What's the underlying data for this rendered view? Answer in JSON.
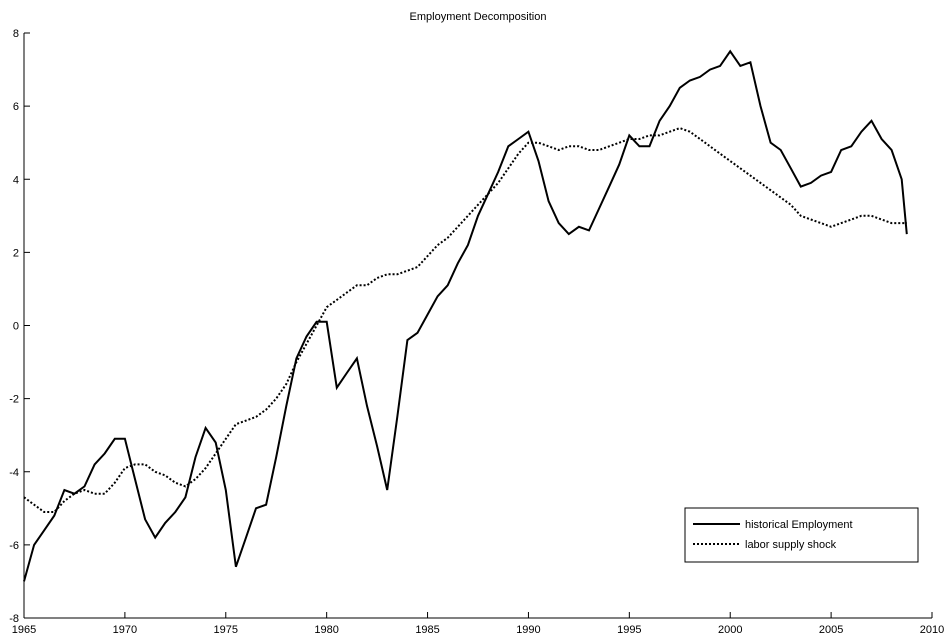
{
  "chart_data": {
    "type": "line",
    "title": "Employment Decomposition",
    "x": [
      1965,
      1965.5,
      1966,
      1966.5,
      1967,
      1967.5,
      1968,
      1968.5,
      1969,
      1969.5,
      1970,
      1970.5,
      1971,
      1971.5,
      1972,
      1972.5,
      1973,
      1973.5,
      1974,
      1974.5,
      1975,
      1975.5,
      1976,
      1976.5,
      1977,
      1977.5,
      1978,
      1978.5,
      1979,
      1979.5,
      1980,
      1980.5,
      1981,
      1981.5,
      1982,
      1982.5,
      1983,
      1983.5,
      1984,
      1984.5,
      1985,
      1985.5,
      1986,
      1986.5,
      1987,
      1987.5,
      1988,
      1988.5,
      1989,
      1989.5,
      1990,
      1990.5,
      1991,
      1991.5,
      1992,
      1992.5,
      1993,
      1993.5,
      1994,
      1994.5,
      1995,
      1995.5,
      1996,
      1996.5,
      1997,
      1997.5,
      1998,
      1998.5,
      1999,
      1999.5,
      2000,
      2000.5,
      2001,
      2001.5,
      2002,
      2002.5,
      2003,
      2003.5,
      2004,
      2004.5,
      2005,
      2005.5,
      2006,
      2006.5,
      2007,
      2007.5,
      2008,
      2008.5,
      2008.75
    ],
    "series": [
      {
        "name": "historical Employment",
        "color": "#000000",
        "line_style": "solid",
        "values": [
          -7.0,
          -6.0,
          -5.6,
          -5.2,
          -4.5,
          -4.6,
          -4.4,
          -3.8,
          -3.5,
          -3.1,
          -3.1,
          -4.2,
          -5.3,
          -5.8,
          -5.4,
          -5.1,
          -4.7,
          -3.6,
          -2.8,
          -3.2,
          -4.5,
          -6.6,
          -5.8,
          -5.0,
          -4.9,
          -3.6,
          -2.2,
          -0.9,
          -0.3,
          0.1,
          0.1,
          -1.7,
          -1.3,
          -0.9,
          -2.2,
          -3.3,
          -4.5,
          -2.5,
          -0.4,
          -0.2,
          0.3,
          0.8,
          1.1,
          1.7,
          2.2,
          3.0,
          3.6,
          4.2,
          4.9,
          5.1,
          5.3,
          4.5,
          3.4,
          2.8,
          2.5,
          2.7,
          2.6,
          3.2,
          3.8,
          4.4,
          5.2,
          4.9,
          4.9,
          5.6,
          6.0,
          6.5,
          6.7,
          6.8,
          7.0,
          7.1,
          7.5,
          7.1,
          7.2,
          6.0,
          5.0,
          4.8,
          4.3,
          3.8,
          3.9,
          4.1,
          4.2,
          4.8,
          4.9,
          5.3,
          5.6,
          5.1,
          4.8,
          4.0,
          2.5
        ]
      },
      {
        "name": "labor supply shock",
        "color": "#000000",
        "line_style": "dotted",
        "values": [
          -4.7,
          -4.9,
          -5.1,
          -5.1,
          -4.8,
          -4.6,
          -4.5,
          -4.6,
          -4.6,
          -4.3,
          -3.9,
          -3.8,
          -3.8,
          -4.0,
          -4.1,
          -4.3,
          -4.4,
          -4.2,
          -3.9,
          -3.5,
          -3.1,
          -2.7,
          -2.6,
          -2.5,
          -2.3,
          -2.0,
          -1.6,
          -1.0,
          -0.5,
          0.0,
          0.5,
          0.7,
          0.9,
          1.1,
          1.1,
          1.3,
          1.4,
          1.4,
          1.5,
          1.6,
          1.9,
          2.2,
          2.4,
          2.7,
          3.0,
          3.3,
          3.6,
          3.9,
          4.3,
          4.7,
          5.0,
          5.0,
          4.9,
          4.8,
          4.9,
          4.9,
          4.8,
          4.8,
          4.9,
          5.0,
          5.1,
          5.1,
          5.2,
          5.2,
          5.3,
          5.4,
          5.3,
          5.1,
          4.9,
          4.7,
          4.5,
          4.3,
          4.1,
          3.9,
          3.7,
          3.5,
          3.3,
          3.0,
          2.9,
          2.8,
          2.7,
          2.8,
          2.9,
          3.0,
          3.0,
          2.9,
          2.8,
          2.8,
          2.8
        ]
      }
    ],
    "xlim": [
      1965,
      2010
    ],
    "xticks": [
      1965,
      1970,
      1975,
      1980,
      1985,
      1990,
      1995,
      2000,
      2005,
      2010
    ],
    "ylim": [
      -8,
      8
    ],
    "yticks": [
      -8,
      -6,
      -4,
      -2,
      0,
      2,
      4,
      6,
      8
    ],
    "grid": false,
    "legend": "lower right"
  }
}
